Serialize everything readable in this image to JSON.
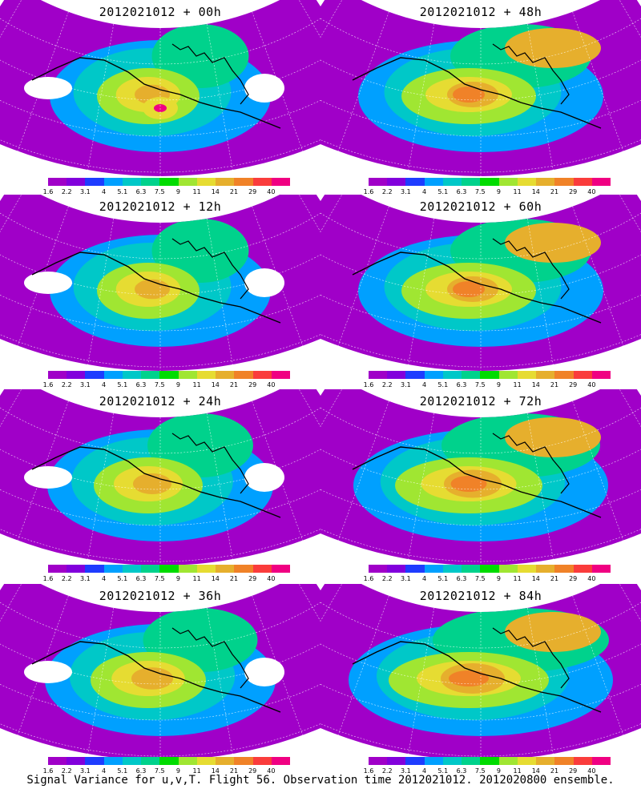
{
  "panels": [
    {
      "title": "2012021012 + 00h"
    },
    {
      "title": "2012021012 + 48h"
    },
    {
      "title": "2012021012 + 12h"
    },
    {
      "title": "2012021012 + 60h"
    },
    {
      "title": "2012021012 + 24h"
    },
    {
      "title": "2012021012 + 72h"
    },
    {
      "title": "2012021012 + 36h"
    },
    {
      "title": "2012021012 + 84h"
    }
  ],
  "colorbar": {
    "labels": [
      "1.6",
      "2.2",
      "3.1",
      "4",
      "5.1",
      "6.3",
      "7.5",
      "9",
      "11",
      "14",
      "21",
      "29",
      "40"
    ],
    "colors": [
      "#a000c8",
      "#8200dc",
      "#1e3cff",
      "#00a0ff",
      "#00c8c8",
      "#00d28c",
      "#00dc00",
      "#a0e632",
      "#e6dc32",
      "#e6af2d",
      "#f08228",
      "#fa3c3c",
      "#f00082"
    ]
  },
  "footer": "Signal Variance for u,v,T. Flight 56. Observation time 2012021012. 2012020800 ensemble."
}
